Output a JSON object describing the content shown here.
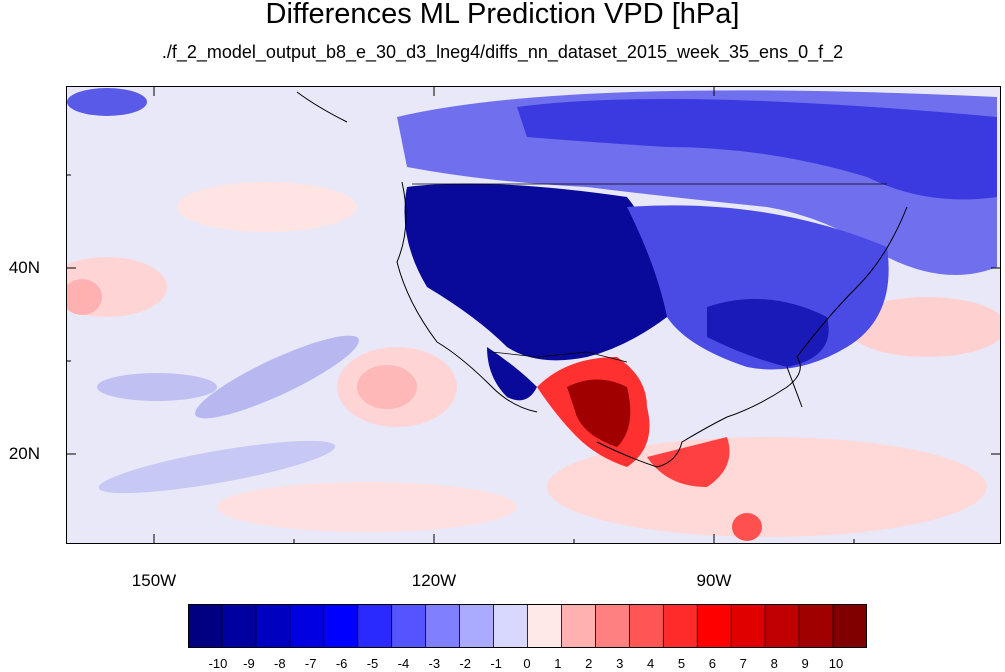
{
  "title": "Differences ML Prediction VPD [hPa]",
  "subtitle": "./f_2_model_output_b8_e_30_d3_lneg4/diffs_nn_dataset_2015_week_35_ens_0_f_2",
  "y_ticks": [
    {
      "label": "40N"
    },
    {
      "label": "20N"
    }
  ],
  "x_ticks": [
    {
      "label": "150W"
    },
    {
      "label": "120W"
    },
    {
      "label": "90W"
    }
  ],
  "colorbar": {
    "colors": [
      "#000080",
      "#0000a0",
      "#0000c0",
      "#0000e0",
      "#0000ff",
      "#2a2aff",
      "#5555ff",
      "#8080ff",
      "#aaaaff",
      "#d8d8ff",
      "#ffe8e8",
      "#ffb0b0",
      "#ff8080",
      "#ff5555",
      "#ff2a2a",
      "#ff0000",
      "#e00000",
      "#c00000",
      "#a00000",
      "#800000"
    ],
    "labels": [
      "-10",
      "-9",
      "-8",
      "-7",
      "-6",
      "-5",
      "-4",
      "-3",
      "-2",
      "-1",
      "0",
      "1",
      "2",
      "3",
      "4",
      "5",
      "6",
      "7",
      "8",
      "9",
      "10"
    ]
  },
  "colors": {
    "background": "#e8e8f8",
    "strong_negative": "#0a0a9a",
    "negative": "#3434e6",
    "mild_negative": "#9a9ae8",
    "mild_positive": "#ffc8c8",
    "strong_positive": "#a00000"
  }
}
